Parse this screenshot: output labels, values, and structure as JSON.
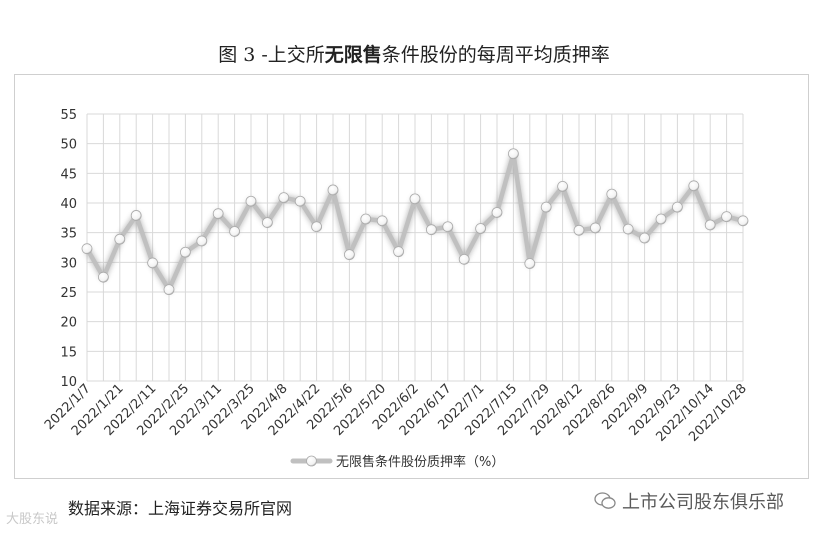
{
  "title": {
    "prefix": "图 3 -上交所",
    "highlight": "无限售",
    "suffix": "条件股份的每周平均质押率"
  },
  "source": "数据来源：上海证券交易所官网",
  "watermark_right": "上市公司股东俱乐部",
  "watermark_left": "大股东说",
  "colors": {
    "line": "#c0c0c0",
    "grid": "#d9d9d9",
    "marker_fill": "#ffffff"
  },
  "chart_data": {
    "type": "line",
    "title": "",
    "xlabel": "",
    "ylabel": "",
    "ylim": [
      10,
      55
    ],
    "yticks": [
      10,
      15,
      20,
      25,
      30,
      35,
      40,
      45,
      50,
      55
    ],
    "grid": true,
    "legend_position": "bottom",
    "x_tick_labels": [
      "2022/1/7",
      "2022/1/21",
      "2022/2/11",
      "2022/2/25",
      "2022/3/11",
      "2022/3/25",
      "2022/4/8",
      "2022/4/22",
      "2022/5/6",
      "2022/5/20",
      "2022/6/2",
      "2022/6/17",
      "2022/7/1",
      "2022/7/15",
      "2022/7/29",
      "2022/8/12",
      "2022/8/26",
      "2022/9/9",
      "2022/9/23",
      "2022/10/14",
      "2022/10/28"
    ],
    "series": [
      {
        "name": "无限售条件股份质押率（%）",
        "values": [
          32.3,
          27.5,
          33.9,
          37.9,
          29.9,
          25.4,
          31.7,
          33.6,
          38.2,
          35.2,
          40.3,
          36.7,
          40.9,
          40.3,
          36.0,
          42.2,
          31.3,
          37.3,
          37.0,
          31.8,
          40.7,
          35.5,
          36.0,
          30.5,
          35.7,
          38.4,
          48.3,
          29.8,
          39.3,
          42.8,
          35.4,
          35.8,
          41.5,
          35.6,
          34.1,
          37.3,
          39.3,
          42.9,
          36.3,
          37.7,
          37.0
        ]
      }
    ]
  }
}
